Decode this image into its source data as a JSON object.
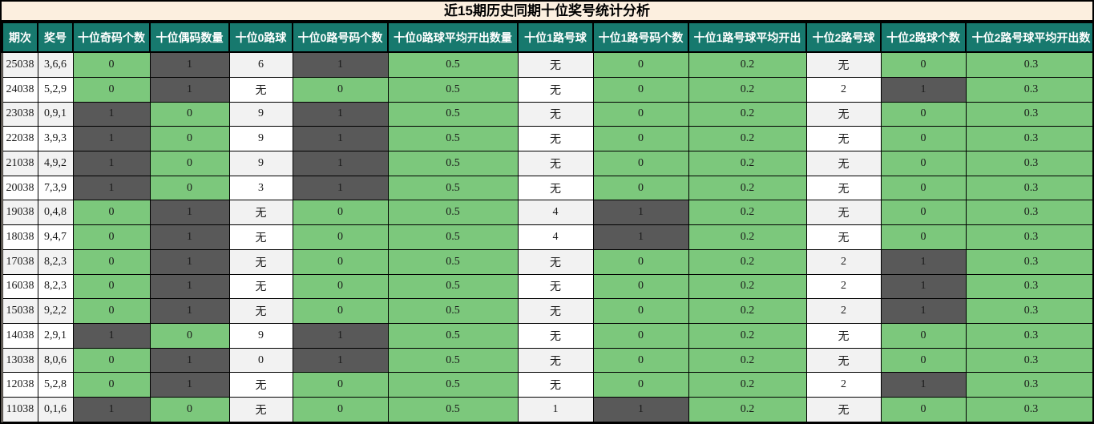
{
  "colors": {
    "title_bg": "#FCEFDF",
    "header_bg": "#17796E",
    "header_text": "#FFFFFF",
    "green_cell": "#7CC87C",
    "dark_cell": "#595959",
    "dark_cell_text": "#D2D2D2",
    "row_light": "#F2F2F2",
    "row_white": "#FFFFFF",
    "grid_line": "#000000"
  },
  "style_codes": {
    "p": "plain cell (alternating light-gray / white by row)",
    "g": "green highlight cell",
    "d": "dark-gray highlight cell"
  },
  "chart_data": {
    "type": "table",
    "title": "近15期历史同期十位奖号统计分析",
    "columns": [
      "期次",
      "奖号",
      "十位奇码个数",
      "十位偶码数量",
      "十位0路球",
      "十位0路号码个数",
      "十位0路球平均开出数量",
      "十位1路号球",
      "十位1路号码个数",
      "十位1路号球平均开出",
      "十位2路号球",
      "十位2路球个数",
      "十位2路号球平均开出数"
    ],
    "rows": [
      [
        [
          "25038",
          "p"
        ],
        [
          "3,6,6",
          "p"
        ],
        [
          "0",
          "g"
        ],
        [
          "1",
          "d"
        ],
        [
          "6",
          "p"
        ],
        [
          "1",
          "d"
        ],
        [
          "0.5",
          "g"
        ],
        [
          "无",
          "p"
        ],
        [
          "0",
          "g"
        ],
        [
          "0.2",
          "g"
        ],
        [
          "无",
          "p"
        ],
        [
          "0",
          "g"
        ],
        [
          "0.3",
          "g"
        ]
      ],
      [
        [
          "24038",
          "p"
        ],
        [
          "5,2,9",
          "p"
        ],
        [
          "0",
          "g"
        ],
        [
          "1",
          "d"
        ],
        [
          "无",
          "p"
        ],
        [
          "0",
          "g"
        ],
        [
          "0.5",
          "g"
        ],
        [
          "无",
          "p"
        ],
        [
          "0",
          "g"
        ],
        [
          "0.2",
          "g"
        ],
        [
          "2",
          "p"
        ],
        [
          "1",
          "d"
        ],
        [
          "0.3",
          "g"
        ]
      ],
      [
        [
          "23038",
          "p"
        ],
        [
          "0,9,1",
          "p"
        ],
        [
          "1",
          "d"
        ],
        [
          "0",
          "g"
        ],
        [
          "9",
          "p"
        ],
        [
          "1",
          "d"
        ],
        [
          "0.5",
          "g"
        ],
        [
          "无",
          "p"
        ],
        [
          "0",
          "g"
        ],
        [
          "0.2",
          "g"
        ],
        [
          "无",
          "p"
        ],
        [
          "0",
          "g"
        ],
        [
          "0.3",
          "g"
        ]
      ],
      [
        [
          "22038",
          "p"
        ],
        [
          "3,9,3",
          "p"
        ],
        [
          "1",
          "d"
        ],
        [
          "0",
          "g"
        ],
        [
          "9",
          "p"
        ],
        [
          "1",
          "d"
        ],
        [
          "0.5",
          "g"
        ],
        [
          "无",
          "p"
        ],
        [
          "0",
          "g"
        ],
        [
          "0.2",
          "g"
        ],
        [
          "无",
          "p"
        ],
        [
          "0",
          "g"
        ],
        [
          "0.3",
          "g"
        ]
      ],
      [
        [
          "21038",
          "p"
        ],
        [
          "4,9,2",
          "p"
        ],
        [
          "1",
          "d"
        ],
        [
          "0",
          "g"
        ],
        [
          "9",
          "p"
        ],
        [
          "1",
          "d"
        ],
        [
          "0.5",
          "g"
        ],
        [
          "无",
          "p"
        ],
        [
          "0",
          "g"
        ],
        [
          "0.2",
          "g"
        ],
        [
          "无",
          "p"
        ],
        [
          "0",
          "g"
        ],
        [
          "0.3",
          "g"
        ]
      ],
      [
        [
          "20038",
          "p"
        ],
        [
          "7,3,9",
          "p"
        ],
        [
          "1",
          "d"
        ],
        [
          "0",
          "g"
        ],
        [
          "3",
          "p"
        ],
        [
          "1",
          "d"
        ],
        [
          "0.5",
          "g"
        ],
        [
          "无",
          "p"
        ],
        [
          "0",
          "g"
        ],
        [
          "0.2",
          "g"
        ],
        [
          "无",
          "p"
        ],
        [
          "0",
          "g"
        ],
        [
          "0.3",
          "g"
        ]
      ],
      [
        [
          "19038",
          "p"
        ],
        [
          "0,4,8",
          "p"
        ],
        [
          "0",
          "g"
        ],
        [
          "1",
          "d"
        ],
        [
          "无",
          "p"
        ],
        [
          "0",
          "g"
        ],
        [
          "0.5",
          "g"
        ],
        [
          "4",
          "p"
        ],
        [
          "1",
          "d"
        ],
        [
          "0.2",
          "g"
        ],
        [
          "无",
          "p"
        ],
        [
          "0",
          "g"
        ],
        [
          "0.3",
          "g"
        ]
      ],
      [
        [
          "18038",
          "p"
        ],
        [
          "9,4,7",
          "p"
        ],
        [
          "0",
          "g"
        ],
        [
          "1",
          "d"
        ],
        [
          "无",
          "p"
        ],
        [
          "0",
          "g"
        ],
        [
          "0.5",
          "g"
        ],
        [
          "4",
          "p"
        ],
        [
          "1",
          "d"
        ],
        [
          "0.2",
          "g"
        ],
        [
          "无",
          "p"
        ],
        [
          "0",
          "g"
        ],
        [
          "0.3",
          "g"
        ]
      ],
      [
        [
          "17038",
          "p"
        ],
        [
          "8,2,3",
          "p"
        ],
        [
          "0",
          "g"
        ],
        [
          "1",
          "d"
        ],
        [
          "无",
          "p"
        ],
        [
          "0",
          "g"
        ],
        [
          "0.5",
          "g"
        ],
        [
          "无",
          "p"
        ],
        [
          "0",
          "g"
        ],
        [
          "0.2",
          "g"
        ],
        [
          "2",
          "p"
        ],
        [
          "1",
          "d"
        ],
        [
          "0.3",
          "g"
        ]
      ],
      [
        [
          "16038",
          "p"
        ],
        [
          "8,2,3",
          "p"
        ],
        [
          "0",
          "g"
        ],
        [
          "1",
          "d"
        ],
        [
          "无",
          "p"
        ],
        [
          "0",
          "g"
        ],
        [
          "0.5",
          "g"
        ],
        [
          "无",
          "p"
        ],
        [
          "0",
          "g"
        ],
        [
          "0.2",
          "g"
        ],
        [
          "2",
          "p"
        ],
        [
          "1",
          "d"
        ],
        [
          "0.3",
          "g"
        ]
      ],
      [
        [
          "15038",
          "p"
        ],
        [
          "9,2,2",
          "p"
        ],
        [
          "0",
          "g"
        ],
        [
          "1",
          "d"
        ],
        [
          "无",
          "p"
        ],
        [
          "0",
          "g"
        ],
        [
          "0.5",
          "g"
        ],
        [
          "无",
          "p"
        ],
        [
          "0",
          "g"
        ],
        [
          "0.2",
          "g"
        ],
        [
          "2",
          "p"
        ],
        [
          "1",
          "d"
        ],
        [
          "0.3",
          "g"
        ]
      ],
      [
        [
          "14038",
          "p"
        ],
        [
          "2,9,1",
          "p"
        ],
        [
          "1",
          "d"
        ],
        [
          "0",
          "g"
        ],
        [
          "9",
          "p"
        ],
        [
          "1",
          "d"
        ],
        [
          "0.5",
          "g"
        ],
        [
          "无",
          "p"
        ],
        [
          "0",
          "g"
        ],
        [
          "0.2",
          "g"
        ],
        [
          "无",
          "p"
        ],
        [
          "0",
          "g"
        ],
        [
          "0.3",
          "g"
        ]
      ],
      [
        [
          "13038",
          "p"
        ],
        [
          "8,0,6",
          "p"
        ],
        [
          "0",
          "g"
        ],
        [
          "1",
          "d"
        ],
        [
          "0",
          "p"
        ],
        [
          "1",
          "d"
        ],
        [
          "0.5",
          "g"
        ],
        [
          "无",
          "p"
        ],
        [
          "0",
          "g"
        ],
        [
          "0.2",
          "g"
        ],
        [
          "无",
          "p"
        ],
        [
          "0",
          "g"
        ],
        [
          "0.3",
          "g"
        ]
      ],
      [
        [
          "12038",
          "p"
        ],
        [
          "5,2,8",
          "p"
        ],
        [
          "0",
          "g"
        ],
        [
          "1",
          "d"
        ],
        [
          "无",
          "p"
        ],
        [
          "0",
          "g"
        ],
        [
          "0.5",
          "g"
        ],
        [
          "无",
          "p"
        ],
        [
          "0",
          "g"
        ],
        [
          "0.2",
          "g"
        ],
        [
          "2",
          "p"
        ],
        [
          "1",
          "d"
        ],
        [
          "0.3",
          "g"
        ]
      ],
      [
        [
          "11038",
          "p"
        ],
        [
          "0,1,6",
          "p"
        ],
        [
          "1",
          "d"
        ],
        [
          "0",
          "g"
        ],
        [
          "无",
          "p"
        ],
        [
          "0",
          "g"
        ],
        [
          "0.5",
          "g"
        ],
        [
          "1",
          "p"
        ],
        [
          "1",
          "d"
        ],
        [
          "0.2",
          "g"
        ],
        [
          "无",
          "p"
        ],
        [
          "0",
          "g"
        ],
        [
          "0.3",
          "g"
        ]
      ]
    ]
  }
}
